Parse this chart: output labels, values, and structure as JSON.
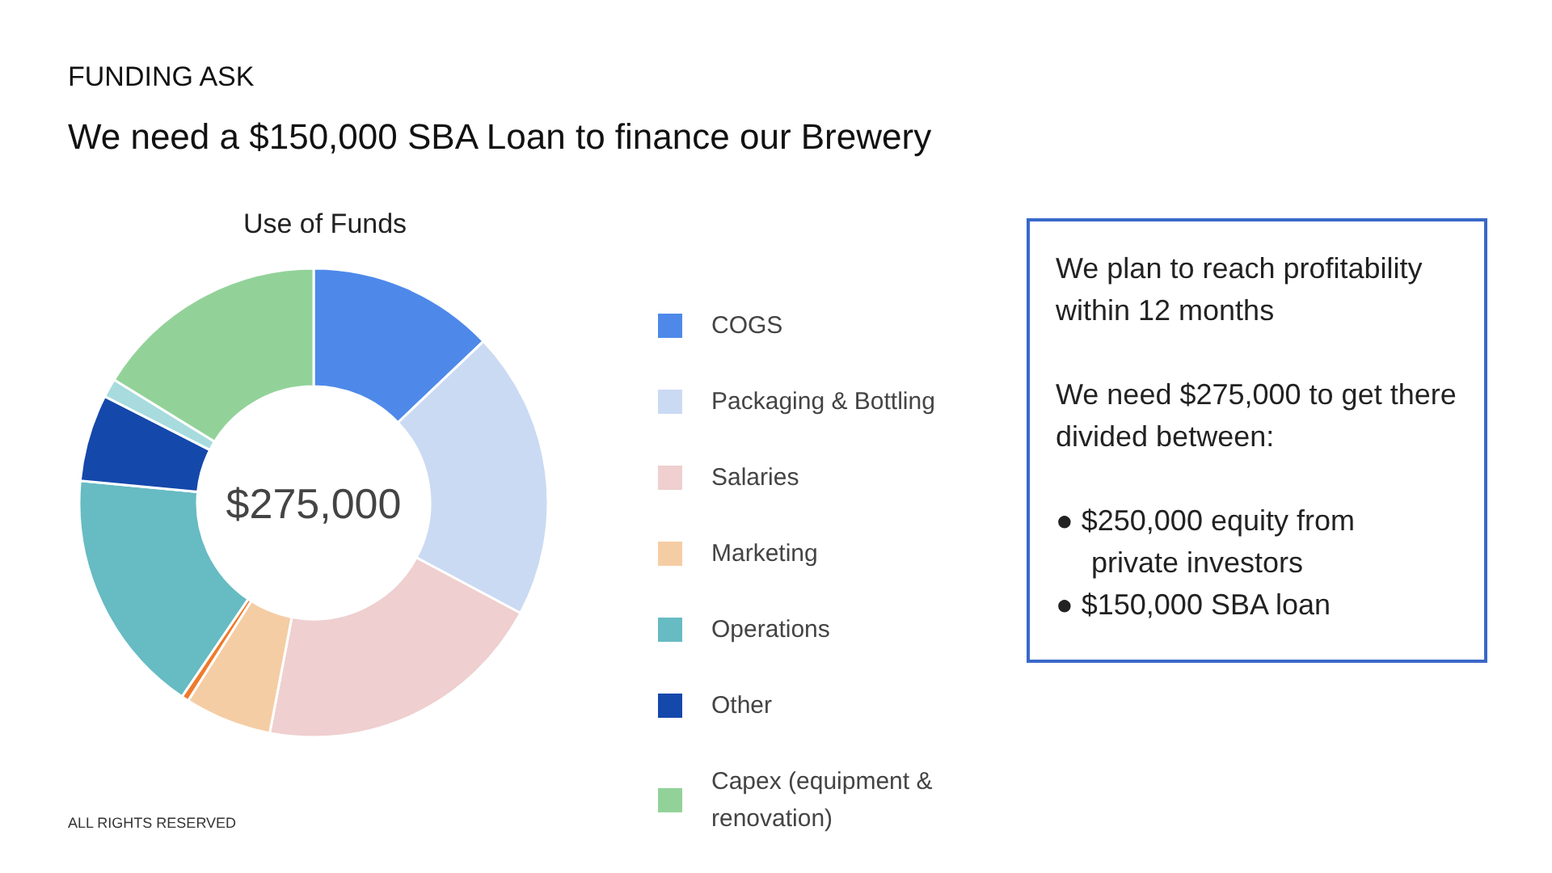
{
  "chart_data": {
    "type": "donut",
    "title": "Use of Funds",
    "categories": [
      "COGS",
      "Packaging & Bottling",
      "Salaries",
      "Marketing",
      null,
      "Operations",
      "Other",
      null,
      "Capex (equipment & renovation)"
    ],
    "values": [
      12.9,
      19.9,
      20.2,
      6.0,
      0.5,
      17.0,
      6.0,
      1.3,
      16.2
    ],
    "colors": [
      "#4e89ea",
      "#cbdaf3",
      "#efcfcf",
      "#f5cda4",
      "#ef7a2c",
      "#67bbc3",
      "#1448ab",
      "#a7dbdd",
      "#92d299"
    ],
    "legend": "right",
    "annotations": [
      "FUNDING ASK",
      "We need a $150,000 SBA Loan to finance our Brewery",
      "$275,000",
      "We plan to reach profitability within 12 months",
      "We need $275,000 to get there divided between:",
      "● $250,000 equity from private investors",
      "● $150,000 SBA loan",
      "ALL RIGHTS RESERVED"
    ]
  }
}
